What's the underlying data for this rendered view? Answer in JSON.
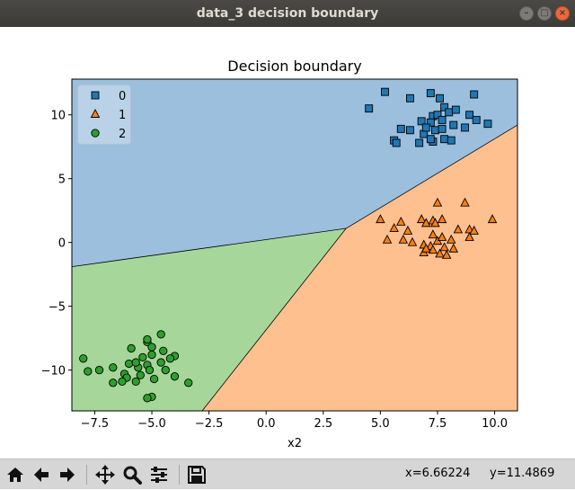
{
  "window": {
    "title": "data_3 decision boundary"
  },
  "toolbar": {
    "buttons": [
      {
        "name": "home-icon"
      },
      {
        "name": "back-arrow-icon"
      },
      {
        "name": "forward-arrow-icon"
      },
      {
        "name": "pan-icon"
      },
      {
        "name": "zoom-icon"
      },
      {
        "name": "configure-subplots-icon"
      },
      {
        "name": "save-icon"
      }
    ],
    "coord_x": "x=6.66224",
    "coord_y": "y=11.4869"
  },
  "colors": {
    "region_0": "#9bbfdd",
    "region_1": "#ffc08f",
    "region_2": "#a7d69a",
    "class_0": "#1f77b4",
    "class_1": "#ff7f0e",
    "class_2": "#2ca02c"
  },
  "chart_data": {
    "type": "scatter",
    "title": "Decision boundary",
    "xlabel": "x2",
    "ylabel": "",
    "xlim": [
      -8.5,
      11
    ],
    "ylim": [
      -13.2,
      12.8
    ],
    "xticks": [
      -7.5,
      -5.0,
      -2.5,
      0.0,
      2.5,
      5.0,
      7.5,
      10.0
    ],
    "yticks": [
      -10,
      -5,
      0,
      5,
      10
    ],
    "xtick_labels": [
      "−7.5",
      "−5.0",
      "−2.5",
      "0.0",
      "2.5",
      "5.0",
      "7.5",
      "10.0"
    ],
    "ytick_labels": [
      "−10",
      "−5",
      "0",
      "5",
      "10"
    ],
    "legend_position": "top-left",
    "grid": false,
    "boundary_vertex": [
      3.5,
      1.1
    ],
    "boundary_edges": [
      [
        -8.5,
        -1.9
      ],
      [
        11,
        9.2
      ],
      [
        -2.8,
        -13.2
      ]
    ],
    "series": [
      {
        "name": "0",
        "marker": "square",
        "points": [
          [
            5.2,
            11.8
          ],
          [
            6.3,
            11.3
          ],
          [
            7.2,
            11.7
          ],
          [
            7.6,
            11.3
          ],
          [
            9.1,
            11.6
          ],
          [
            4.5,
            10.5
          ],
          [
            7.8,
            10.6
          ],
          [
            8.0,
            10.2
          ],
          [
            8.3,
            10.4
          ],
          [
            7.3,
            9.9
          ],
          [
            7.5,
            10.0
          ],
          [
            8.9,
            10.0
          ],
          [
            6.8,
            9.5
          ],
          [
            7.2,
            9.4
          ],
          [
            7.7,
            9.6
          ],
          [
            9.2,
            9.6
          ],
          [
            5.9,
            8.9
          ],
          [
            6.3,
            8.8
          ],
          [
            6.9,
            8.5
          ],
          [
            7.4,
            8.8
          ],
          [
            7.7,
            8.9
          ],
          [
            8.2,
            9.2
          ],
          [
            8.7,
            9.0
          ],
          [
            9.7,
            9.3
          ],
          [
            5.6,
            8.0
          ],
          [
            5.7,
            7.8
          ],
          [
            6.7,
            7.8
          ],
          [
            7.3,
            7.9
          ],
          [
            7.8,
            8.1
          ],
          [
            8.1,
            8.0
          ],
          [
            7.2,
            8.1
          ],
          [
            7.0,
            9.0
          ]
        ]
      },
      {
        "name": "1",
        "marker": "triangle",
        "points": [
          [
            5.0,
            1.8
          ],
          [
            5.6,
            1.1
          ],
          [
            5.9,
            1.6
          ],
          [
            6.2,
            0.9
          ],
          [
            6.8,
            1.8
          ],
          [
            7.0,
            1.5
          ],
          [
            7.3,
            1.7
          ],
          [
            7.5,
            3.1
          ],
          [
            7.4,
            1.5
          ],
          [
            7.7,
            1.8
          ],
          [
            8.7,
            3.1
          ],
          [
            8.4,
            1.0
          ],
          [
            8.9,
            1.0
          ],
          [
            9.1,
            0.9
          ],
          [
            9.9,
            1.8
          ],
          [
            5.3,
            0.2
          ],
          [
            6.0,
            0.2
          ],
          [
            6.4,
            0.0
          ],
          [
            7.3,
            0.6
          ],
          [
            7.5,
            0.1
          ],
          [
            7.7,
            0.4
          ],
          [
            8.1,
            0.2
          ],
          [
            8.9,
            0.4
          ],
          [
            6.9,
            -0.2
          ],
          [
            7.2,
            -0.3
          ],
          [
            7.8,
            -0.4
          ],
          [
            8.2,
            -0.5
          ],
          [
            6.9,
            -0.8
          ],
          [
            7.3,
            -0.6
          ],
          [
            7.6,
            -0.9
          ],
          [
            7.9,
            -1.0
          ],
          [
            7.0,
            -0.5
          ]
        ]
      },
      {
        "name": "2",
        "marker": "circle",
        "points": [
          [
            -8.0,
            -9.1
          ],
          [
            -7.3,
            -10.0
          ],
          [
            -6.7,
            -9.8
          ],
          [
            -6.2,
            -10.3
          ],
          [
            -6.0,
            -9.5
          ],
          [
            -5.6,
            -9.8
          ],
          [
            -5.2,
            -9.6
          ],
          [
            -4.6,
            -9.4
          ],
          [
            -5.4,
            -9.0
          ],
          [
            -5.0,
            -8.8
          ],
          [
            -4.5,
            -8.5
          ],
          [
            -4.0,
            -8.9
          ],
          [
            -5.9,
            -8.3
          ],
          [
            -5.2,
            -7.8
          ],
          [
            -4.6,
            -7.2
          ],
          [
            -5.0,
            -8.2
          ],
          [
            -5.7,
            -9.4
          ],
          [
            -7.8,
            -10.1
          ],
          [
            -6.7,
            -11.0
          ],
          [
            -6.1,
            -10.6
          ],
          [
            -5.7,
            -10.9
          ],
          [
            -5.5,
            -10.4
          ],
          [
            -5.1,
            -10.0
          ],
          [
            -4.9,
            -10.7
          ],
          [
            -4.4,
            -10.0
          ],
          [
            -4.0,
            -10.5
          ],
          [
            -3.4,
            -11.0
          ],
          [
            -5.0,
            -12.1
          ],
          [
            -5.2,
            -12.2
          ],
          [
            -6.3,
            -10.9
          ],
          [
            -5.2,
            -7.6
          ],
          [
            -4.2,
            -9.1
          ]
        ]
      }
    ]
  }
}
